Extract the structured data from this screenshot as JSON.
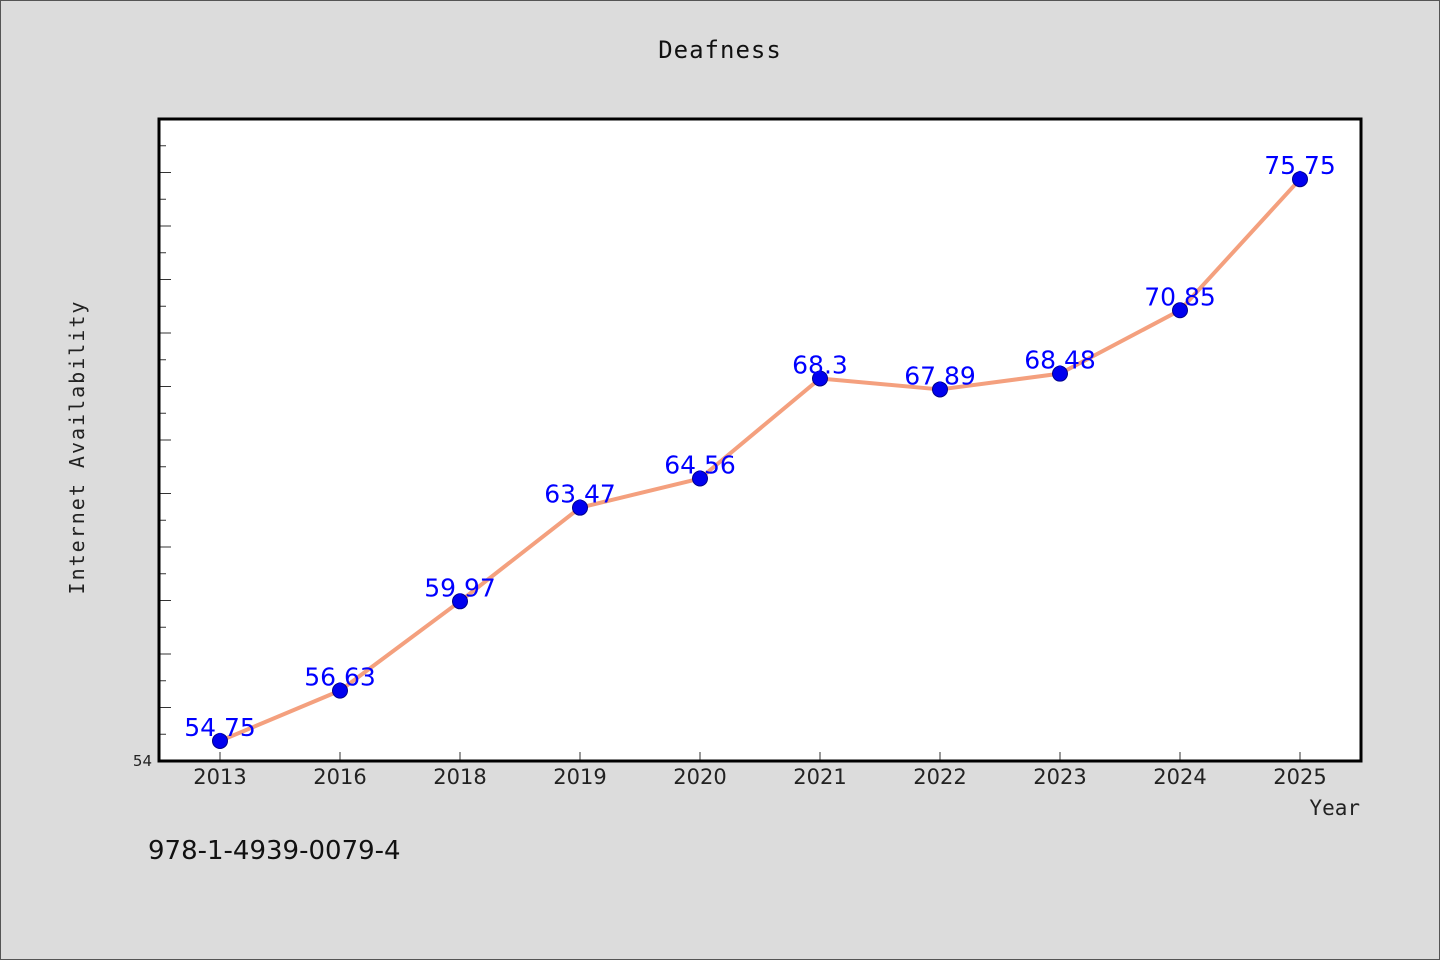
{
  "chart_data": {
    "type": "line",
    "title": "Deafness",
    "xlabel": "Year",
    "ylabel": "Internet Availability",
    "categories": [
      "2013",
      "2016",
      "2018",
      "2019",
      "2020",
      "2021",
      "2022",
      "2023",
      "2024",
      "2025"
    ],
    "series": [
      {
        "values": [
          54.75,
          56.63,
          59.97,
          63.47,
          64.56,
          68.3,
          67.89,
          68.48,
          70.85,
          75.75
        ],
        "data_labels": [
          "54.75",
          "56.63",
          "59.97",
          "63.47",
          "64.56",
          "68.3",
          "67.89",
          "68.48",
          "70.85",
          "75.75"
        ]
      }
    ],
    "y_tick_labels": [
      "54"
    ],
    "ylim": [
      54,
      78
    ],
    "grid": false,
    "legend": "none",
    "colors": {
      "line": "#f4a07e",
      "marker": "#0000ee",
      "data_label": "#0000ff",
      "plot_background": "#ffffff",
      "page_background": "#dcdcdc"
    }
  },
  "footer": {
    "isbn": "978-1-4939-0079-4"
  }
}
